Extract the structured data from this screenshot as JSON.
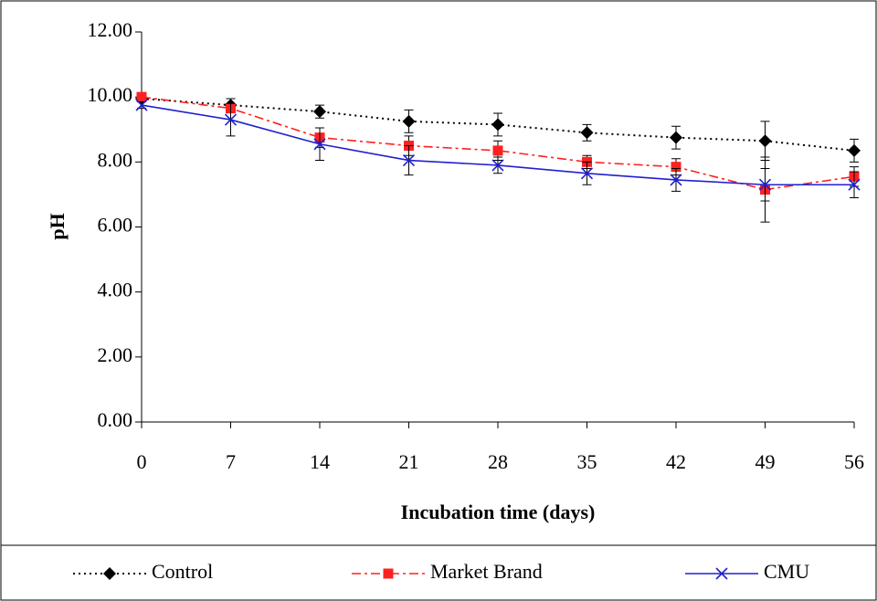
{
  "chart_data": {
    "type": "line",
    "x_label": "Incubation time (days)",
    "y_label": "pH",
    "x": [
      0,
      7,
      14,
      21,
      28,
      35,
      42,
      49,
      56
    ],
    "xlim": [
      0,
      56
    ],
    "xticks": [
      0,
      7,
      14,
      21,
      28,
      35,
      42,
      49,
      56
    ],
    "ylim": [
      0,
      12
    ],
    "yticks": [
      {
        "value": 0,
        "label": "0.00"
      },
      {
        "value": 2,
        "label": "2.00"
      },
      {
        "value": 4,
        "label": "4.00"
      },
      {
        "value": 6,
        "label": "6.00"
      },
      {
        "value": 8,
        "label": "8.00"
      },
      {
        "value": 10,
        "label": "10.00"
      },
      {
        "value": 12,
        "label": "12.00"
      }
    ],
    "grid": false,
    "legend": "bottom",
    "series": [
      {
        "name": "Control",
        "color": "#000000",
        "marker": "diamond",
        "dash": "dotted",
        "values": [
          9.95,
          9.75,
          9.55,
          9.25,
          9.15,
          8.9,
          8.75,
          8.65,
          8.35
        ],
        "errors": [
          0.05,
          0.2,
          0.2,
          0.35,
          0.35,
          0.25,
          0.35,
          0.6,
          0.35
        ]
      },
      {
        "name": "Market Brand",
        "color": "#ff2020",
        "marker": "square",
        "dash": "dashdot",
        "values": [
          10.0,
          9.65,
          8.75,
          8.5,
          8.35,
          8.0,
          7.85,
          7.15,
          7.55
        ],
        "errors": [
          0.05,
          0.1,
          0.3,
          0.3,
          0.3,
          0.2,
          0.25,
          1.0,
          0.3
        ]
      },
      {
        "name": "CMU",
        "color": "#2020d0",
        "marker": "x",
        "dash": "solid",
        "values": [
          9.75,
          9.3,
          8.55,
          8.05,
          7.9,
          7.65,
          7.45,
          7.3,
          7.3
        ],
        "errors": [
          0.1,
          0.5,
          0.5,
          0.45,
          0.25,
          0.35,
          0.35,
          0.5,
          0.4
        ]
      }
    ]
  }
}
